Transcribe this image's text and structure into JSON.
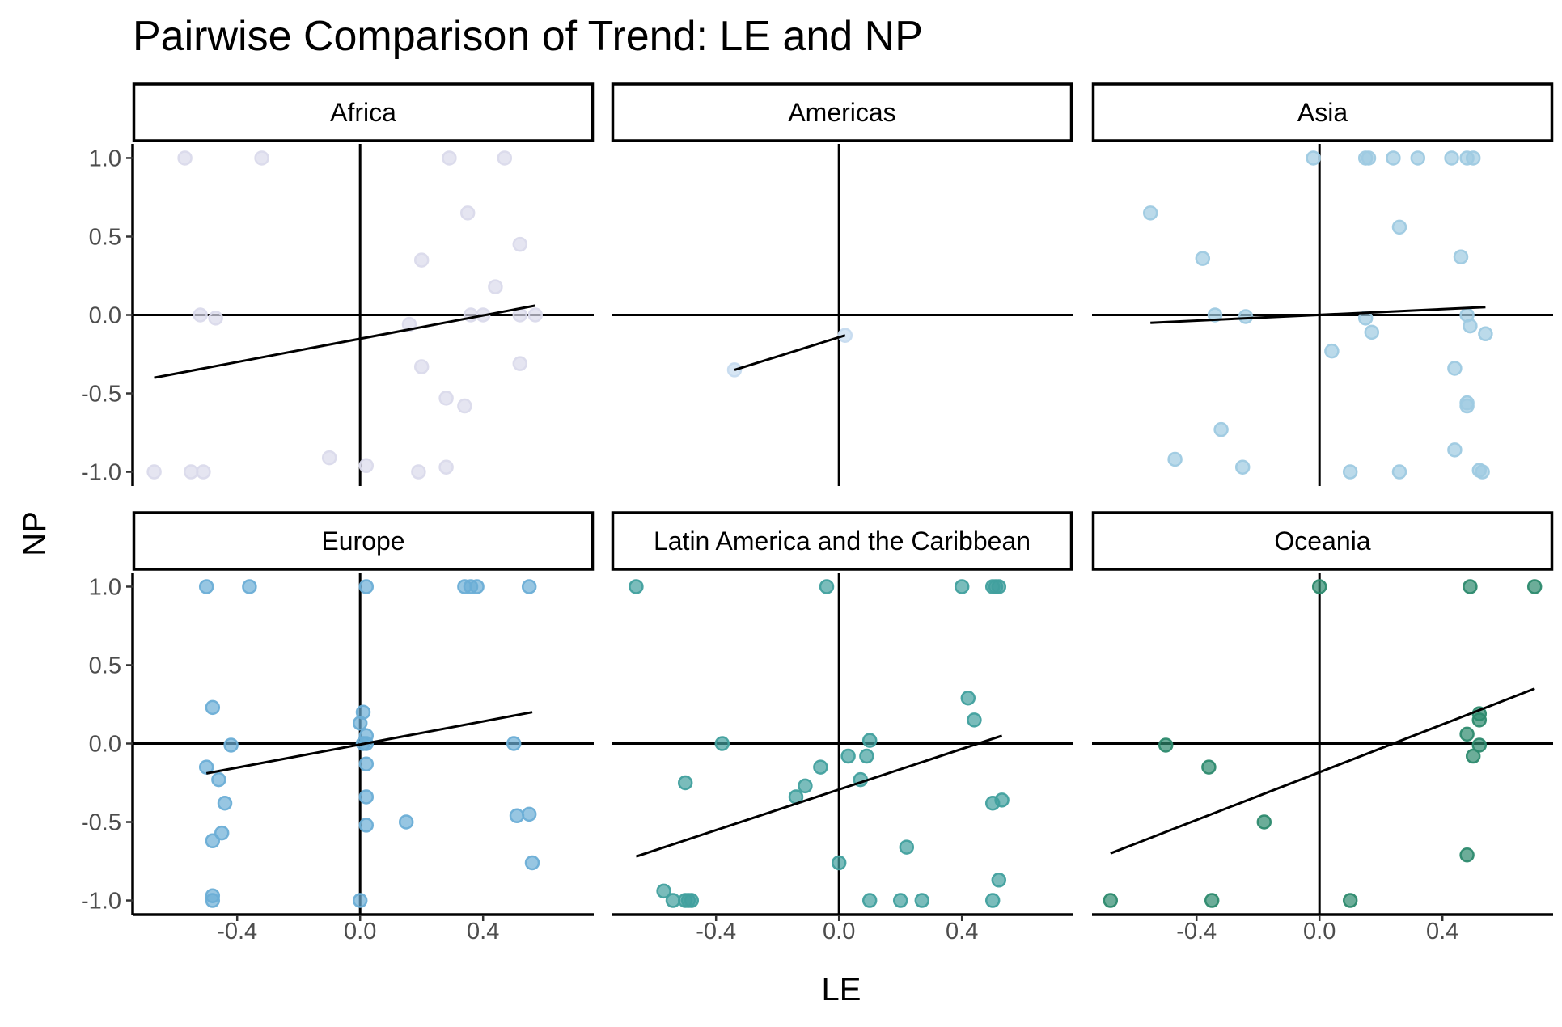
{
  "chart_data": {
    "type": "scatter",
    "title": "Pairwise Comparison of Trend: LE and NP",
    "xlabel": "LE",
    "ylabel": "NP",
    "xlim": [
      -0.74,
      0.76
    ],
    "ylim": [
      -1.09,
      1.09
    ],
    "x_ticks": [
      -0.4,
      0.0,
      0.4
    ],
    "x_tick_labels": [
      "-0.4",
      "0.0",
      "0.4"
    ],
    "y_ticks": [
      1.0,
      0.5,
      0.0,
      -0.5,
      -1.0
    ],
    "y_tick_labels": [
      "1.0",
      "0.5",
      "0.0",
      "-0.5",
      "-1.0"
    ],
    "grid": false,
    "legend": "none",
    "reference_lines": {
      "x": 0,
      "y": 0
    },
    "facets": [
      {
        "name": "Africa",
        "color": "#dadaeb",
        "trend": {
          "x": [
            -0.67,
            0.57
          ],
          "y": [
            -0.4,
            0.06
          ]
        },
        "points": [
          [
            -0.57,
            1.0
          ],
          [
            -0.32,
            1.0
          ],
          [
            0.29,
            1.0
          ],
          [
            0.47,
            1.0
          ],
          [
            0.35,
            0.65
          ],
          [
            0.52,
            0.45
          ],
          [
            0.2,
            0.35
          ],
          [
            0.44,
            0.18
          ],
          [
            -0.52,
            0.0
          ],
          [
            -0.47,
            -0.02
          ],
          [
            0.36,
            0.0
          ],
          [
            0.4,
            0.0
          ],
          [
            0.52,
            0.0
          ],
          [
            0.57,
            0.0
          ],
          [
            0.16,
            -0.06
          ],
          [
            0.2,
            -0.33
          ],
          [
            0.52,
            -0.31
          ],
          [
            0.28,
            -0.53
          ],
          [
            0.34,
            -0.58
          ],
          [
            -0.67,
            -1.0
          ],
          [
            -0.55,
            -1.0
          ],
          [
            -0.51,
            -1.0
          ],
          [
            -0.1,
            -0.91
          ],
          [
            0.02,
            -0.96
          ],
          [
            0.19,
            -1.0
          ],
          [
            0.28,
            -0.97
          ]
        ]
      },
      {
        "name": "Americas",
        "color": "#c6dbef",
        "trend": {
          "x": [
            -0.34,
            0.02
          ],
          "y": [
            -0.35,
            -0.13
          ]
        },
        "points": [
          [
            -0.34,
            -0.35
          ],
          [
            0.02,
            -0.13
          ]
        ]
      },
      {
        "name": "Asia",
        "color": "#9ecae1",
        "trend": {
          "x": [
            -0.55,
            0.54
          ],
          "y": [
            -0.05,
            0.05
          ]
        },
        "points": [
          [
            -0.02,
            1.0
          ],
          [
            0.15,
            1.0
          ],
          [
            0.16,
            1.0
          ],
          [
            0.24,
            1.0
          ],
          [
            0.32,
            1.0
          ],
          [
            0.43,
            1.0
          ],
          [
            0.48,
            1.0
          ],
          [
            0.5,
            1.0
          ],
          [
            -0.55,
            0.65
          ],
          [
            0.26,
            0.56
          ],
          [
            -0.38,
            0.36
          ],
          [
            0.46,
            0.37
          ],
          [
            -0.34,
            0.0
          ],
          [
            -0.24,
            -0.01
          ],
          [
            0.15,
            -0.02
          ],
          [
            0.17,
            -0.11
          ],
          [
            0.48,
            0.0
          ],
          [
            0.49,
            -0.07
          ],
          [
            0.54,
            -0.12
          ],
          [
            0.04,
            -0.23
          ],
          [
            0.44,
            -0.34
          ],
          [
            0.48,
            -0.56
          ],
          [
            0.48,
            -0.58
          ],
          [
            -0.32,
            -0.73
          ],
          [
            -0.47,
            -0.92
          ],
          [
            -0.25,
            -0.97
          ],
          [
            0.1,
            -1.0
          ],
          [
            0.26,
            -1.0
          ],
          [
            0.44,
            -0.86
          ],
          [
            0.52,
            -0.99
          ],
          [
            0.53,
            -1.0
          ]
        ]
      },
      {
        "name": "Europe",
        "color": "#6baed6",
        "trend": {
          "x": [
            -0.5,
            0.56
          ],
          "y": [
            -0.19,
            0.2
          ]
        },
        "points": [
          [
            -0.5,
            1.0
          ],
          [
            -0.36,
            1.0
          ],
          [
            0.02,
            1.0
          ],
          [
            0.34,
            1.0
          ],
          [
            0.36,
            1.0
          ],
          [
            0.38,
            1.0
          ],
          [
            0.55,
            1.0
          ],
          [
            -0.48,
            0.23
          ],
          [
            0.01,
            0.2
          ],
          [
            0.0,
            0.13
          ],
          [
            0.02,
            0.05
          ],
          [
            0.01,
            0.0
          ],
          [
            0.02,
            0.0
          ],
          [
            -0.42,
            -0.01
          ],
          [
            0.5,
            0.0
          ],
          [
            -0.5,
            -0.15
          ],
          [
            -0.46,
            -0.23
          ],
          [
            0.02,
            -0.13
          ],
          [
            -0.44,
            -0.38
          ],
          [
            0.02,
            -0.34
          ],
          [
            -0.45,
            -0.57
          ],
          [
            -0.48,
            -0.62
          ],
          [
            0.02,
            -0.52
          ],
          [
            0.15,
            -0.5
          ],
          [
            0.51,
            -0.46
          ],
          [
            0.55,
            -0.45
          ],
          [
            0.56,
            -0.76
          ],
          [
            -0.48,
            -0.97
          ],
          [
            -0.48,
            -1.0
          ],
          [
            0.0,
            -1.0
          ]
        ]
      },
      {
        "name": "Latin America and the Caribbean",
        "color": "#41a09e",
        "trend": {
          "x": [
            -0.66,
            0.53
          ],
          "y": [
            -0.72,
            0.05
          ]
        },
        "points": [
          [
            -0.66,
            1.0
          ],
          [
            -0.04,
            1.0
          ],
          [
            0.4,
            1.0
          ],
          [
            0.5,
            1.0
          ],
          [
            0.51,
            1.0
          ],
          [
            0.52,
            1.0
          ],
          [
            0.42,
            0.29
          ],
          [
            0.44,
            0.15
          ],
          [
            -0.38,
            0.0
          ],
          [
            0.1,
            0.02
          ],
          [
            0.03,
            -0.08
          ],
          [
            0.09,
            -0.08
          ],
          [
            -0.06,
            -0.15
          ],
          [
            -0.5,
            -0.25
          ],
          [
            -0.11,
            -0.27
          ],
          [
            0.07,
            -0.23
          ],
          [
            -0.14,
            -0.34
          ],
          [
            0.5,
            -0.38
          ],
          [
            0.53,
            -0.36
          ],
          [
            0.22,
            -0.66
          ],
          [
            0.0,
            -0.76
          ],
          [
            -0.57,
            -0.94
          ],
          [
            -0.54,
            -1.0
          ],
          [
            -0.5,
            -1.0
          ],
          [
            -0.49,
            -1.0
          ],
          [
            -0.48,
            -1.0
          ],
          [
            0.1,
            -1.0
          ],
          [
            0.2,
            -1.0
          ],
          [
            0.27,
            -1.0
          ],
          [
            0.5,
            -1.0
          ],
          [
            0.52,
            -0.87
          ]
        ]
      },
      {
        "name": "Oceania",
        "color": "#2d8a6e",
        "trend": {
          "x": [
            -0.68,
            0.7
          ],
          "y": [
            -0.7,
            0.35
          ]
        },
        "points": [
          [
            0.0,
            1.0
          ],
          [
            0.49,
            1.0
          ],
          [
            0.7,
            1.0
          ],
          [
            0.52,
            0.19
          ],
          [
            0.52,
            0.15
          ],
          [
            0.48,
            0.06
          ],
          [
            -0.5,
            -0.01
          ],
          [
            0.52,
            -0.01
          ],
          [
            0.5,
            -0.08
          ],
          [
            -0.36,
            -0.15
          ],
          [
            -0.18,
            -0.5
          ],
          [
            0.48,
            -0.71
          ],
          [
            -0.68,
            -1.0
          ],
          [
            -0.35,
            -1.0
          ],
          [
            0.1,
            -1.0
          ]
        ]
      }
    ]
  }
}
